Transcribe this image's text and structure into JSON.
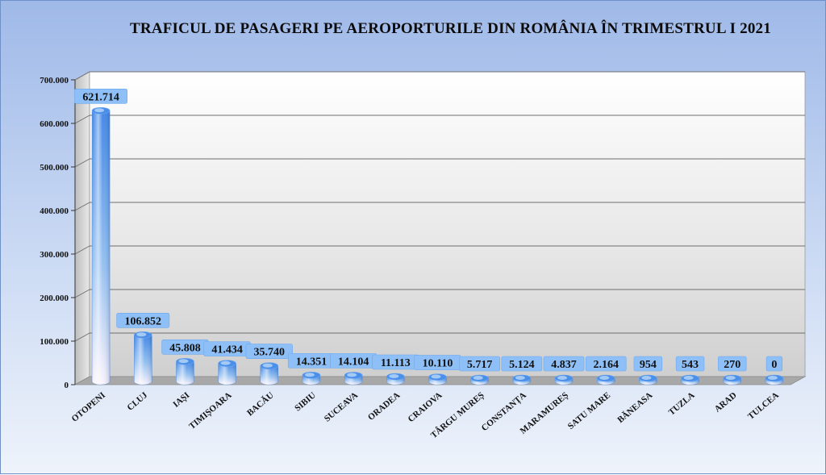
{
  "chart_data": {
    "type": "bar",
    "title": "TRAFICUL DE PASAGERI PE AEROPORTURILE DIN ROMÂNIA ÎN TRIMESTRUL I 2021",
    "categories": [
      "OTOPENI",
      "CLUJ",
      "IAȘI",
      "TIMIȘOARA",
      "BACĂU",
      "SIBIU",
      "SUCEAVA",
      "ORADEA",
      "CRAIOVA",
      "TÂRGU MUREȘ",
      "CONSTANȚA",
      "MARAMUREȘ",
      "SATU MARE",
      "BĂNEASA",
      "TUZLA",
      "ARAD",
      "TULCEA"
    ],
    "values": [
      621714,
      106852,
      45808,
      41434,
      35740,
      14351,
      14104,
      11113,
      10110,
      5717,
      5124,
      4837,
      2164,
      954,
      543,
      270,
      0
    ],
    "value_labels": [
      "621.714",
      "106.852",
      "45.808",
      "41.434",
      "35.740",
      "14.351",
      "14.104",
      "11.113",
      "10.110",
      "5.717",
      "5.124",
      "4.837",
      "2.164",
      "954",
      "543",
      "270",
      "0"
    ],
    "ylim": [
      0,
      700000
    ],
    "yticks": [
      0,
      100000,
      200000,
      300000,
      400000,
      500000,
      600000,
      700000
    ],
    "ytick_labels": [
      "0",
      "100.000",
      "200.000",
      "300.000",
      "400.000",
      "500.000",
      "600.000",
      "700.000"
    ],
    "xlabel": "",
    "ylabel": "",
    "grid": true,
    "legend": "none",
    "colors": {
      "bar_top": "#3f86e8",
      "bar_bottom": "#ffffff",
      "label_bg": "#8fc0f5",
      "wall": "#d8d8d8",
      "floor": "#9a9a9a"
    }
  }
}
